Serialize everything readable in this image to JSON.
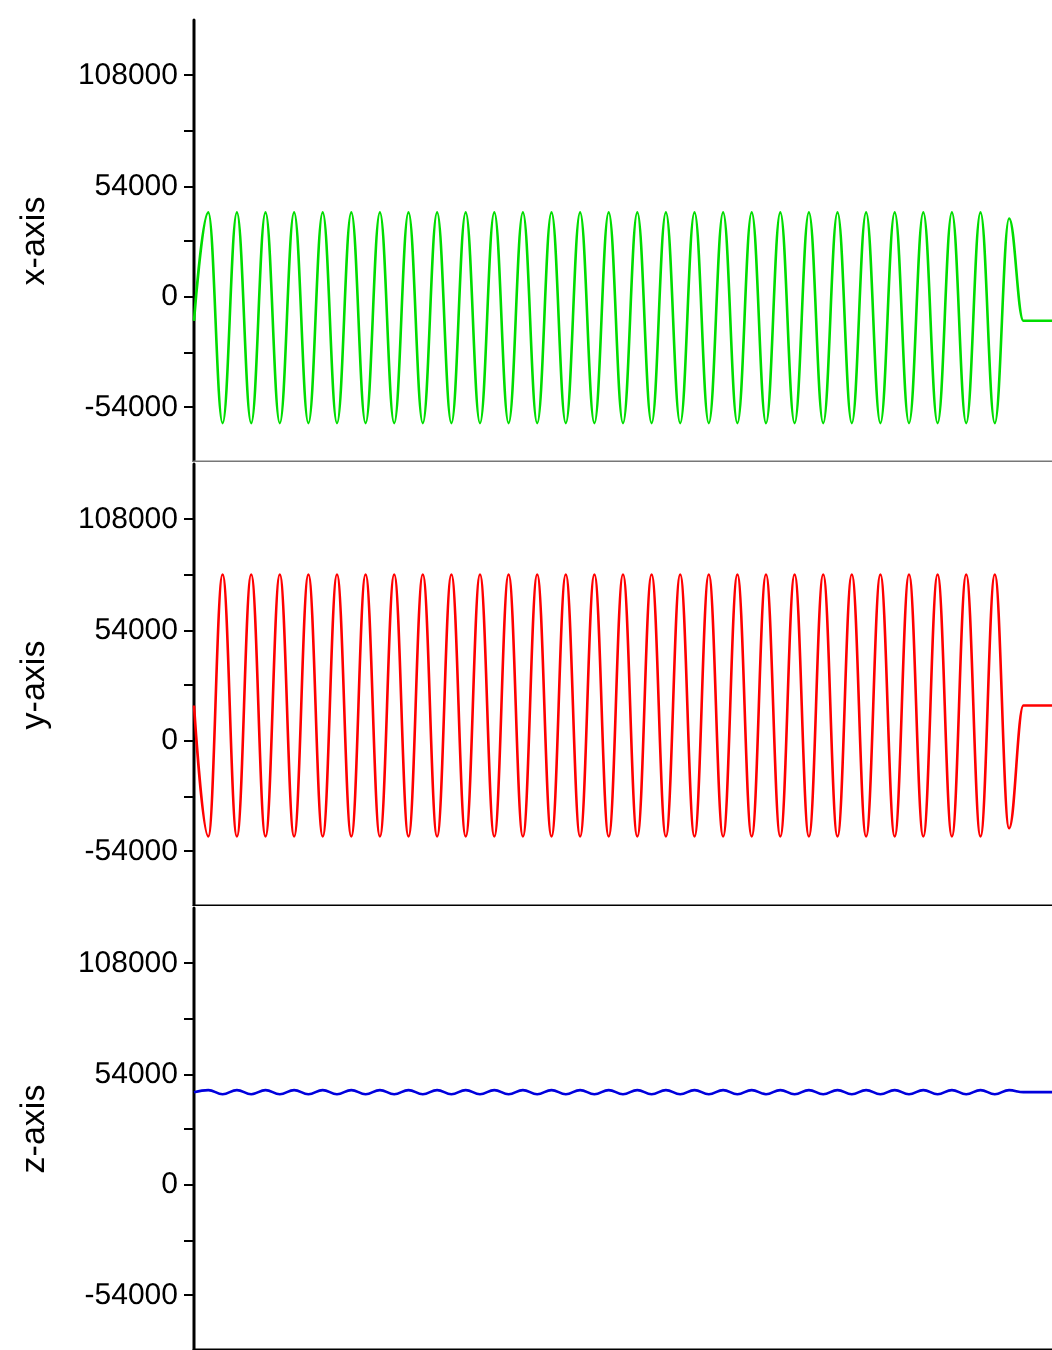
{
  "chart_data": [
    {
      "type": "line",
      "ylabel": "x-axis",
      "categories": [
        null,
        null,
        null,
        null,
        null,
        null,
        null,
        null,
        null,
        null,
        null,
        null,
        null,
        null,
        null,
        null,
        null,
        null,
        null,
        null,
        null,
        null,
        null,
        null,
        null,
        null,
        null,
        null,
        null,
        null,
        null,
        null,
        null,
        null,
        null,
        null,
        null,
        null,
        null,
        null,
        null,
        null,
        null,
        null,
        null,
        null,
        null,
        null,
        null,
        null,
        null,
        null,
        null,
        null,
        null,
        null,
        null,
        null,
        null,
        null,
        null
      ],
      "series": [
        {
          "color": "#00dd00",
          "values": [
            -12000,
            41000,
            -62000,
            41000,
            -62000,
            41000,
            -62000,
            41000,
            -62000,
            41000,
            -62000,
            41000,
            -62000,
            41000,
            -62000,
            41000,
            -62000,
            41000,
            -62000,
            41000,
            -62000,
            41000,
            -62000,
            41000,
            -62000,
            41000,
            -62000,
            41000,
            -62000,
            41000,
            -62000,
            41000,
            -62000,
            41000,
            -62000,
            41000,
            -62000,
            41000,
            -62000,
            41000,
            -62000,
            41000,
            -62000,
            41000,
            -62000,
            41000,
            -62000,
            41000,
            -62000,
            41000,
            -62000,
            41000,
            -62000,
            41000,
            -62000,
            41000,
            -62000,
            38000,
            -12000,
            -12000,
            -12000
          ]
        }
      ],
      "ylim": [
        -81000,
        135000
      ],
      "yticks": [
        -54000,
        {
          "value": -27000,
          "label": null
        },
        0,
        {
          "value": 27000,
          "label": null
        },
        54000,
        {
          "value": 81000,
          "label": null
        },
        108000
      ],
      "tick_labels": "y"
    },
    {
      "type": "line",
      "ylabel": "y-axis",
      "categories": [
        null,
        null,
        null,
        null,
        null,
        null,
        null,
        null,
        null,
        null,
        null,
        null,
        null,
        null,
        null,
        null,
        null,
        null,
        null,
        null,
        null,
        null,
        null,
        null,
        null,
        null,
        null,
        null,
        null,
        null,
        null,
        null,
        null,
        null,
        null,
        null,
        null,
        null,
        null,
        null,
        null,
        null,
        null,
        null,
        null,
        null,
        null,
        null,
        null,
        null,
        null,
        null,
        null,
        null,
        null,
        null,
        null,
        null,
        null,
        null,
        null
      ],
      "series": [
        {
          "color": "#ff0000",
          "values": [
            17000,
            -47000,
            81000,
            -47000,
            81000,
            -47000,
            81000,
            -47000,
            81000,
            -47000,
            81000,
            -47000,
            81000,
            -47000,
            81000,
            -47000,
            81000,
            -47000,
            81000,
            -47000,
            81000,
            -47000,
            81000,
            -47000,
            81000,
            -47000,
            81000,
            -47000,
            81000,
            -47000,
            81000,
            -47000,
            81000,
            -47000,
            81000,
            -47000,
            81000,
            -47000,
            81000,
            -47000,
            81000,
            -47000,
            81000,
            -47000,
            81000,
            -47000,
            81000,
            -47000,
            81000,
            -47000,
            81000,
            -47000,
            81000,
            -47000,
            81000,
            -47000,
            81000,
            -43000,
            17000,
            17000,
            17000
          ]
        }
      ],
      "ylim": [
        -81000,
        135000
      ],
      "yticks": [
        -54000,
        {
          "value": -27000,
          "label": null
        },
        0,
        {
          "value": 27000,
          "label": null
        },
        54000,
        {
          "value": 81000,
          "label": null
        },
        108000
      ],
      "tick_labels": "y"
    },
    {
      "type": "line",
      "ylabel": "z-axis",
      "categories": [
        null,
        null,
        null,
        null,
        null,
        null,
        null,
        null,
        null,
        null,
        null,
        null,
        null,
        null,
        null,
        null,
        null,
        null,
        null,
        null,
        null,
        null,
        null,
        null,
        null,
        null,
        null,
        null,
        null,
        null,
        null,
        null,
        null,
        null,
        null,
        null,
        null,
        null,
        null,
        null,
        null,
        null,
        null,
        null,
        null,
        null,
        null,
        null,
        null,
        null,
        null,
        null,
        null,
        null,
        null,
        null,
        null,
        null,
        null,
        null,
        null
      ],
      "series": [
        {
          "color": "#0000dd",
          "values": [
            45000,
            46000,
            44000,
            46000,
            44000,
            46000,
            44000,
            46000,
            44000,
            46000,
            44000,
            46000,
            44000,
            46000,
            44000,
            46000,
            44000,
            46000,
            44000,
            46000,
            44000,
            46000,
            44000,
            46000,
            44000,
            46000,
            44000,
            46000,
            44000,
            46000,
            44000,
            46000,
            44000,
            46000,
            44000,
            46000,
            44000,
            46000,
            44000,
            46000,
            44000,
            46000,
            44000,
            46000,
            44000,
            46000,
            44000,
            46000,
            44000,
            46000,
            44000,
            46000,
            44000,
            46000,
            44000,
            46000,
            44000,
            46000,
            45000,
            45000,
            45000
          ]
        }
      ],
      "ylim": [
        -81000,
        135000
      ],
      "yticks": [
        -54000,
        {
          "value": -27000,
          "label": null
        },
        0,
        {
          "value": 27000,
          "label": null
        },
        54000,
        {
          "value": 81000,
          "label": null
        },
        108000
      ],
      "tick_labels": "y"
    }
  ]
}
